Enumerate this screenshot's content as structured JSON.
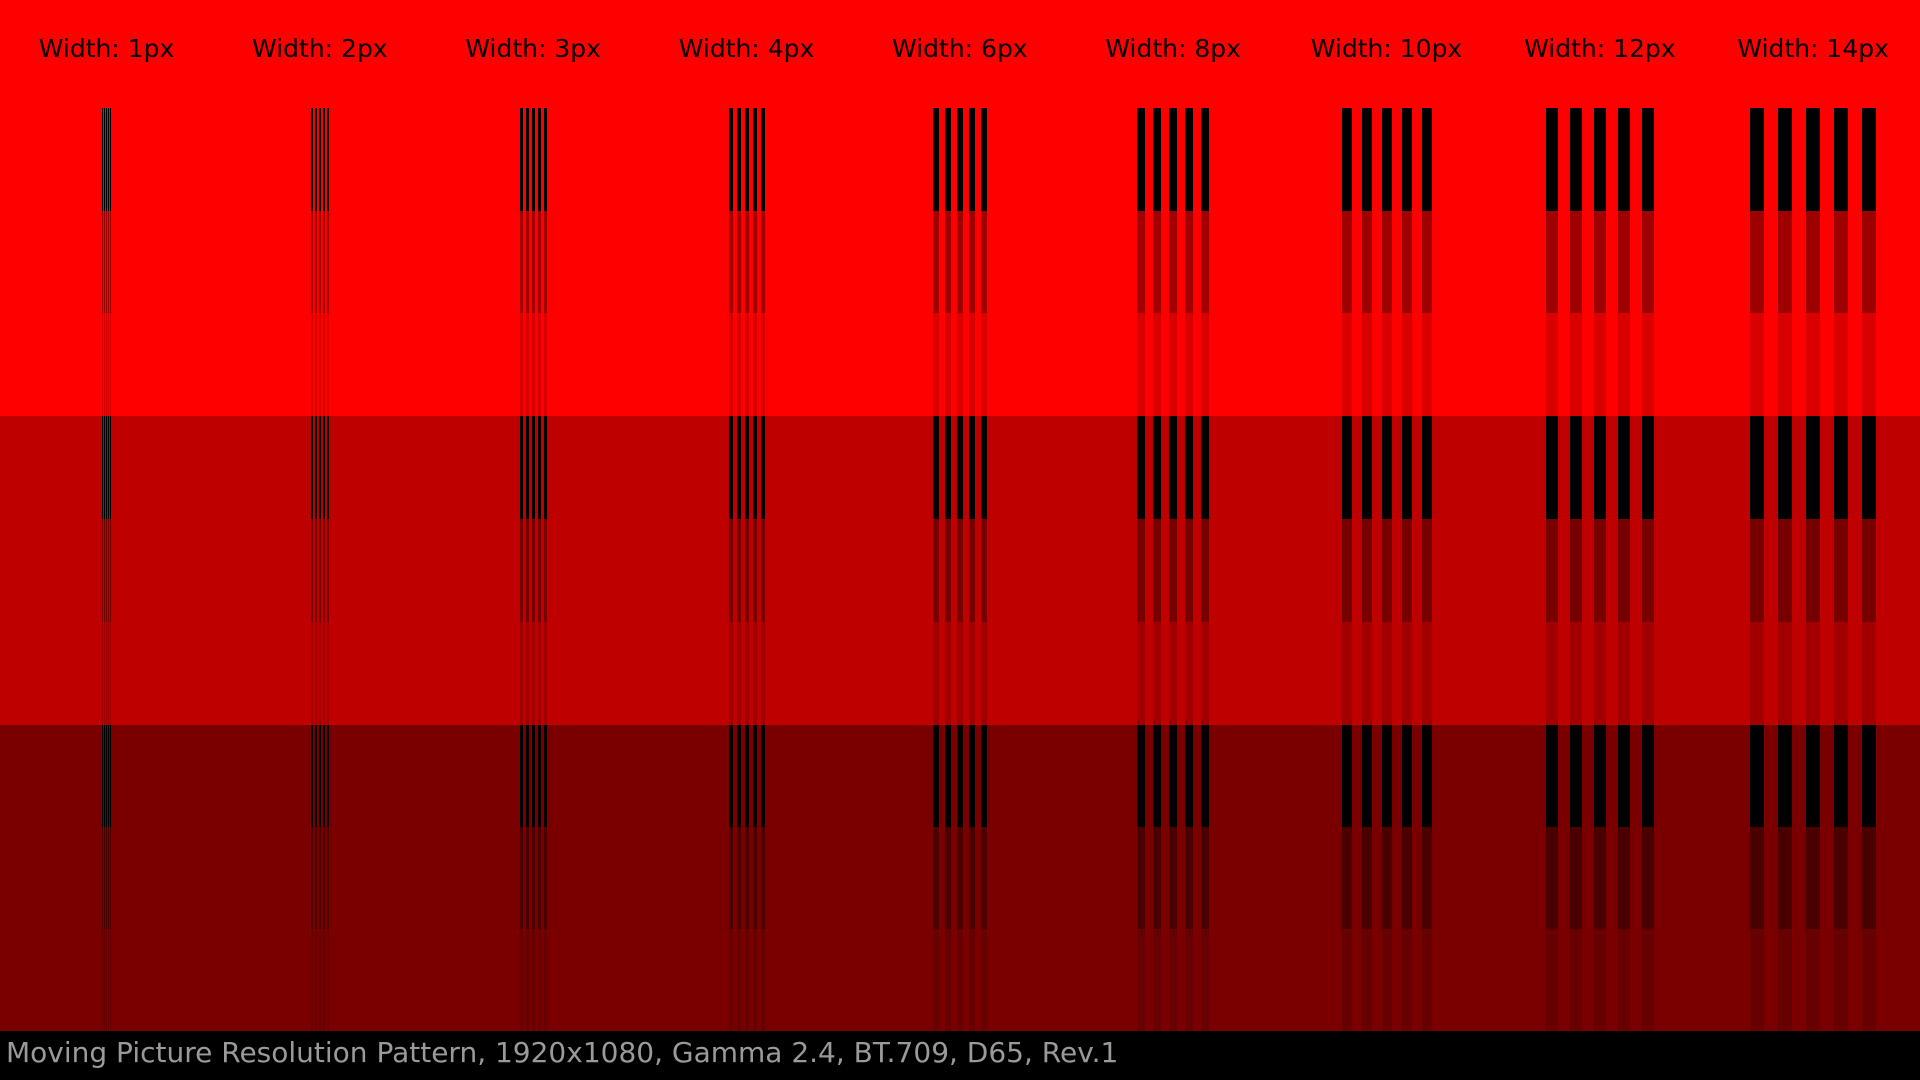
{
  "labels": [
    "Width: 1px",
    "Width: 2px",
    "Width: 3px",
    "Width: 4px",
    "Width: 6px",
    "Width: 8px",
    "Width: 10px",
    "Width: 12px",
    "Width: 14px"
  ],
  "footer": "Moving Picture Resolution Pattern, 1920x1080, Gamma 2.4, BT.709, D65, Rev.1"
}
